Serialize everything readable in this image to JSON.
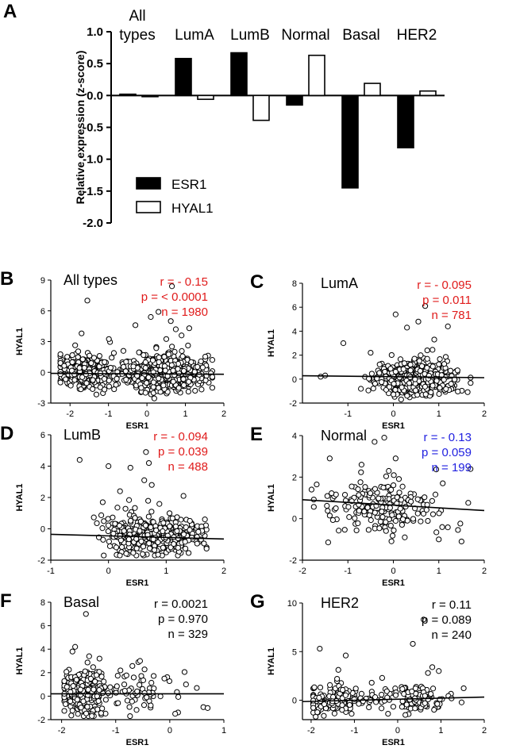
{
  "chart_data": [
    {
      "panel": "A",
      "type": "bar",
      "categories": [
        "All types",
        "LumA",
        "LumB",
        "Normal",
        "Basal",
        "HER2"
      ],
      "series": [
        {
          "name": "ESR1",
          "values": [
            0.02,
            0.58,
            0.67,
            -0.15,
            -1.45,
            -0.82
          ]
        },
        {
          "name": "HYAL1",
          "values": [
            -0.01,
            -0.06,
            -0.39,
            0.63,
            0.19,
            0.07
          ]
        }
      ],
      "ylabel": "Relative expression (z-score)",
      "ylim": [
        -2.0,
        1.0
      ],
      "yticks": [
        "1.0",
        "0.5",
        "0.0",
        "-0.5",
        "-1.0",
        "-1.5",
        "-2.0"
      ],
      "ytick_values": [
        1.0,
        0.5,
        0.0,
        -0.5,
        -1.0,
        -1.5,
        -2.0
      ]
    },
    {
      "panel": "B",
      "type": "scatter",
      "title": "All types",
      "xlabel": "ESR1",
      "ylabel": "HYAL1",
      "xlim": [
        -2.5,
        2
      ],
      "ylim": [
        -3,
        9
      ],
      "xticks": [
        -2,
        -1,
        0,
        1,
        2
      ],
      "yticks": [
        -3,
        0,
        3,
        6,
        9
      ],
      "stat_color": "#e01b1b",
      "stats": [
        "r = - 0.15",
        "p = < 0.0001",
        "n = 1980"
      ],
      "n": 1980,
      "center_y": -0.1,
      "spread_y": 0.75,
      "x_groups": [
        [
          -1.65,
          0.32,
          0.3
        ],
        [
          0.45,
          0.55,
          0.7
        ]
      ],
      "trend": [
        -0.02,
        -0.15
      ],
      "outliers": [
        [
          0.65,
          8.4
        ],
        [
          -1.55,
          7.0
        ],
        [
          0.1,
          5.4
        ],
        [
          0.3,
          5.9
        ],
        [
          0.62,
          5.0
        ],
        [
          -0.3,
          4.6
        ],
        [
          1.1,
          4.3
        ],
        [
          0.75,
          4.2
        ],
        [
          -1.7,
          3.8
        ],
        [
          0.9,
          3.6
        ]
      ]
    },
    {
      "panel": "C",
      "type": "scatter",
      "title": "LumA",
      "xlabel": "ESR1",
      "ylabel": "HYAL1",
      "xlim": [
        -2,
        2
      ],
      "ylim": [
        -2,
        8
      ],
      "xticks": [
        -1,
        0,
        1,
        2
      ],
      "yticks": [
        -2,
        0,
        2,
        4,
        6,
        8
      ],
      "stat_color": "#e01b1b",
      "stats": [
        "r = - 0.095",
        "p = 0.011",
        "n = 781"
      ],
      "n": 781,
      "center_y": 0.0,
      "spread_y": 0.6,
      "x_groups": [
        [
          0.5,
          0.38,
          1.0
        ]
      ],
      "trend": [
        -0.04,
        0.2
      ],
      "outliers": [
        [
          0.7,
          6.1
        ],
        [
          0.05,
          5.4
        ],
        [
          0.55,
          4.8
        ],
        [
          1.2,
          4.4
        ],
        [
          0.3,
          4.3
        ],
        [
          -1.1,
          3.0
        ],
        [
          0.9,
          3.3
        ],
        [
          -0.5,
          2.2
        ],
        [
          -1.5,
          0.3
        ],
        [
          -1.6,
          0.2
        ]
      ]
    },
    {
      "panel": "D",
      "type": "scatter",
      "title": "LumB",
      "xlabel": "ESR1",
      "ylabel": "HYAL1",
      "xlim": [
        -1,
        2
      ],
      "ylim": [
        -2,
        6
      ],
      "xticks": [
        -1,
        0,
        1,
        2
      ],
      "yticks": [
        -2,
        0,
        2,
        4,
        6
      ],
      "stat_color": "#e01b1b",
      "stats": [
        "r = - 0.094",
        "p = 0.039",
        "n = 488"
      ],
      "n": 488,
      "center_y": -0.45,
      "spread_y": 0.5,
      "x_groups": [
        [
          0.75,
          0.42,
          1.0
        ]
      ],
      "trend": [
        -0.1,
        -0.45
      ],
      "outliers": [
        [
          -0.5,
          4.4
        ],
        [
          0.65,
          4.9
        ],
        [
          0.0,
          4.0
        ],
        [
          0.38,
          3.9
        ],
        [
          0.7,
          4.2
        ],
        [
          0.62,
          3.1
        ],
        [
          0.75,
          2.8
        ],
        [
          0.2,
          2.4
        ],
        [
          -0.1,
          1.7
        ],
        [
          1.3,
          2.1
        ]
      ]
    },
    {
      "panel": "E",
      "type": "scatter",
      "title": "Normal",
      "xlabel": "ESR1",
      "ylabel": "HYAL1",
      "xlim": [
        -2,
        2
      ],
      "ylim": [
        -2,
        4
      ],
      "xticks": [
        -2,
        -1,
        0,
        1,
        2
      ],
      "yticks": [
        -2,
        0,
        2,
        4
      ],
      "stat_color": "#1f1fe0",
      "stats": [
        "r = - 0.13",
        "p = 0.059",
        "n = 199"
      ],
      "n": 199,
      "center_y": 0.5,
      "spread_y": 0.7,
      "x_groups": [
        [
          -0.1,
          0.75,
          1.0
        ]
      ],
      "trend": [
        -0.13,
        0.65
      ],
      "outliers": [
        [
          -0.2,
          3.9
        ],
        [
          -1.4,
          2.9
        ],
        [
          0.05,
          2.9
        ],
        [
          -0.7,
          2.6
        ],
        [
          -0.1,
          2.3
        ],
        [
          -1.8,
          1.4
        ],
        [
          1.0,
          -1.0
        ],
        [
          1.5,
          -1.1
        ]
      ]
    },
    {
      "panel": "F",
      "type": "scatter",
      "title": "Basal",
      "xlabel": "ESR1",
      "ylabel": "HYAL1",
      "xlim": [
        -2.2,
        1
      ],
      "ylim": [
        -2,
        8
      ],
      "xticks": [
        -2,
        -1,
        0,
        1
      ],
      "yticks": [
        -2,
        0,
        2,
        4,
        6,
        8
      ],
      "stat_color": "#000000",
      "stats": [
        "r = 0.0021",
        "p = 0.970",
        "n = 329"
      ],
      "n": 329,
      "center_y": 0.3,
      "spread_y": 0.85,
      "x_groups": [
        [
          -1.6,
          0.18,
          0.8
        ],
        [
          -0.7,
          0.5,
          0.2
        ]
      ],
      "trend": [
        0.0,
        0.2
      ],
      "outliers": [
        [
          -1.55,
          7.0
        ],
        [
          -1.75,
          4.2
        ],
        [
          -1.8,
          3.8
        ],
        [
          -0.55,
          3.0
        ],
        [
          -1.3,
          3.2
        ],
        [
          -0.1,
          1.5
        ],
        [
          0.3,
          1.0
        ],
        [
          0.5,
          0.7
        ],
        [
          0.1,
          -1.5
        ]
      ]
    },
    {
      "panel": "G",
      "type": "scatter",
      "title": "HER2",
      "xlabel": "ESR1",
      "ylabel": "HYAL1",
      "xlim": [
        -2.2,
        2
      ],
      "ylim": [
        -2,
        10
      ],
      "xticks": [
        -2,
        -1,
        0,
        1,
        2
      ],
      "yticks": [
        0,
        5,
        10
      ],
      "stat_color": "#000000",
      "stats": [
        "r = 0.11",
        "p = 0.089",
        "n = 240"
      ],
      "n": 240,
      "center_y": 0.0,
      "spread_y": 0.7,
      "x_groups": [
        [
          -1.5,
          0.35,
          0.55
        ],
        [
          0.3,
          0.45,
          0.45
        ]
      ],
      "trend": [
        0.11,
        0.1
      ],
      "outliers": [
        [
          0.6,
          8.3
        ],
        [
          -1.8,
          5.3
        ],
        [
          0.35,
          5.8
        ],
        [
          -1.2,
          4.6
        ],
        [
          0.8,
          3.4
        ],
        [
          0.7,
          2.8
        ],
        [
          -1.4,
          2.2
        ],
        [
          0.95,
          3.0
        ],
        [
          -0.6,
          1.8
        ]
      ]
    }
  ]
}
